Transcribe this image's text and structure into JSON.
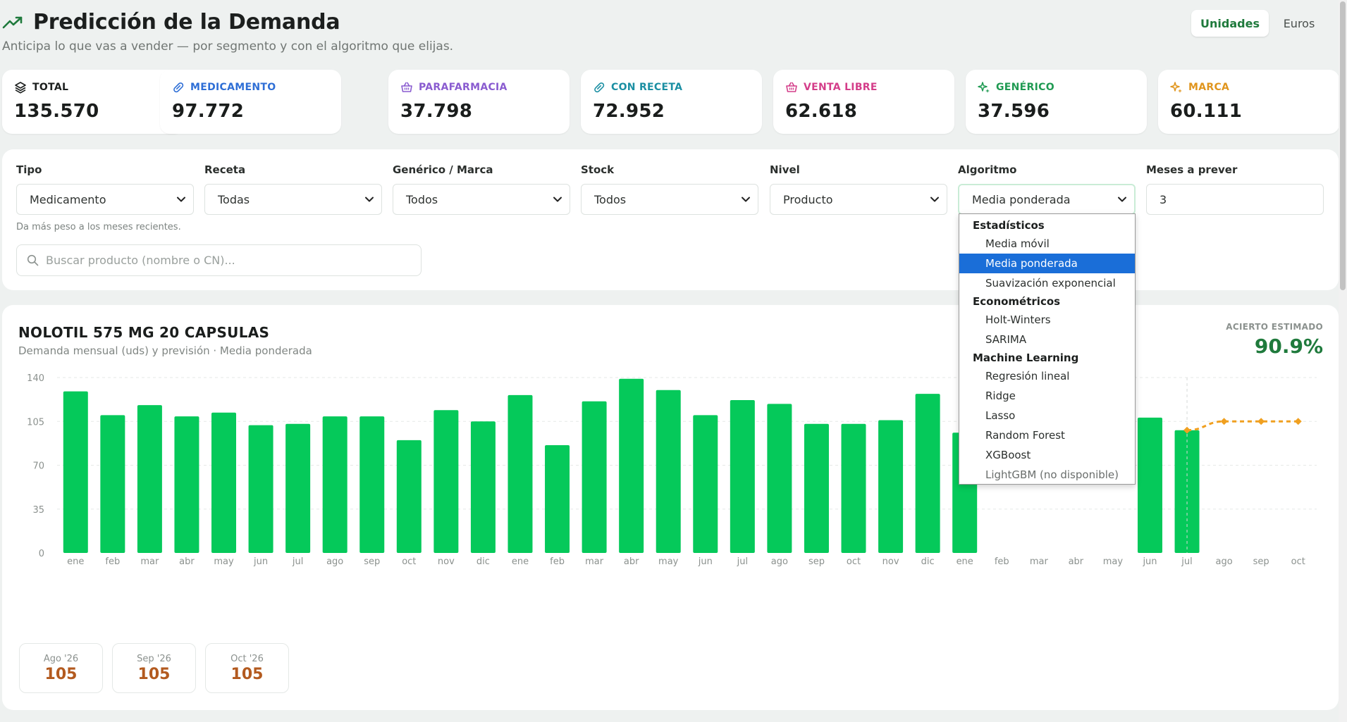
{
  "header": {
    "title": "Predicción de la Demanda",
    "subtitle": "Anticipa lo que vas a vender — por segmento y con el algoritmo que elijas.",
    "units": {
      "active": "Unidades",
      "inactive": "Euros"
    }
  },
  "kpis": [
    {
      "label": "TOTAL",
      "value": "135.570",
      "icon": "layers-icon",
      "color": "#1c1f1e"
    },
    {
      "label": "MEDICAMENTO",
      "value": "97.772",
      "icon": "pill-icon",
      "color": "#2f6fd6"
    },
    {
      "label": "PARAFARMACIA",
      "value": "37.798",
      "icon": "basket-icon",
      "color": "#8a5cd0"
    },
    {
      "label": "CON RECETA",
      "value": "72.952",
      "icon": "pill-icon",
      "color": "#1b8fa3"
    },
    {
      "label": "VENTA LIBRE",
      "value": "62.618",
      "icon": "basket-icon",
      "color": "#d43e8a"
    },
    {
      "label": "GENÉRICO",
      "value": "37.596",
      "icon": "sparkle-icon",
      "color": "#1f9a52"
    },
    {
      "label": "MARCA",
      "value": "60.111",
      "icon": "sparkle-icon",
      "color": "#e0951d"
    }
  ],
  "filters": {
    "fields": [
      {
        "label": "Tipo",
        "value": "Medicamento"
      },
      {
        "label": "Receta",
        "value": "Todas"
      },
      {
        "label": "Genérico / Marca",
        "value": "Todos"
      },
      {
        "label": "Stock",
        "value": "Todos"
      },
      {
        "label": "Nivel",
        "value": "Producto"
      },
      {
        "label": "Algoritmo",
        "value": "Media ponderada"
      },
      {
        "label": "Meses a prever",
        "value": "3"
      }
    ],
    "help": "Da más peso a los meses recientes.",
    "search_placeholder": "Buscar producto (nombre o CN)..."
  },
  "dropdown": {
    "groups": [
      {
        "name": "Estadísticos",
        "options": [
          "Media móvil",
          "Media ponderada",
          "Suavización exponencial"
        ]
      },
      {
        "name": "Econométricos",
        "options": [
          "Holt-Winters",
          "SARIMA"
        ]
      },
      {
        "name": "Machine Learning",
        "options": [
          "Regresión lineal",
          "Ridge",
          "Lasso",
          "Random Forest",
          "XGBoost",
          "LightGBM (no disponible)"
        ]
      }
    ],
    "selected": "Media ponderada",
    "disabled": "LightGBM (no disponible)"
  },
  "chart": {
    "title": "NOLOTIL 575 MG 20 CAPSULAS",
    "subtitle": "Demanda mensual (uds) y previsión · Media ponderada",
    "accuracy_label": "ACIERTO ESTIMADO",
    "accuracy_value": "90.9%",
    "forecast_tiles": [
      {
        "month": "Ago '26",
        "value": "105"
      },
      {
        "month": "Sep '26",
        "value": "105"
      },
      {
        "month": "Oct '26",
        "value": "105"
      }
    ]
  },
  "chart_data": {
    "type": "bar",
    "categories": [
      "ene",
      "feb",
      "mar",
      "abr",
      "may",
      "jun",
      "jul",
      "ago",
      "sep",
      "oct",
      "nov",
      "dic",
      "ene",
      "feb",
      "mar",
      "abr",
      "may",
      "jun",
      "jul",
      "ago",
      "sep",
      "oct",
      "nov",
      "dic",
      "ene",
      "feb",
      "mar",
      "abr",
      "may",
      "jun",
      "jul",
      "ago",
      "sep",
      "oct"
    ],
    "series": [
      {
        "values": [
          129,
          110,
          118,
          109,
          112,
          102,
          103,
          109,
          109,
          90,
          114,
          105,
          126,
          86,
          121,
          139,
          130,
          110,
          122,
          119,
          103,
          103,
          106,
          127,
          96,
          null,
          null,
          null,
          null,
          108,
          98,
          null,
          null,
          null
        ]
      },
      {
        "values": [
          null,
          null,
          null,
          null,
          null,
          null,
          null,
          null,
          null,
          null,
          null,
          null,
          null,
          null,
          null,
          null,
          null,
          null,
          null,
          null,
          null,
          null,
          null,
          null,
          null,
          null,
          null,
          null,
          null,
          null,
          98,
          105,
          105,
          105
        ]
      }
    ],
    "ylim": [
      0,
      140
    ],
    "yticks": [
      0,
      35,
      70,
      105,
      140
    ],
    "grid": true,
    "colors": {
      "actual": "#05c95a",
      "forecast": "#f0a020"
    }
  }
}
